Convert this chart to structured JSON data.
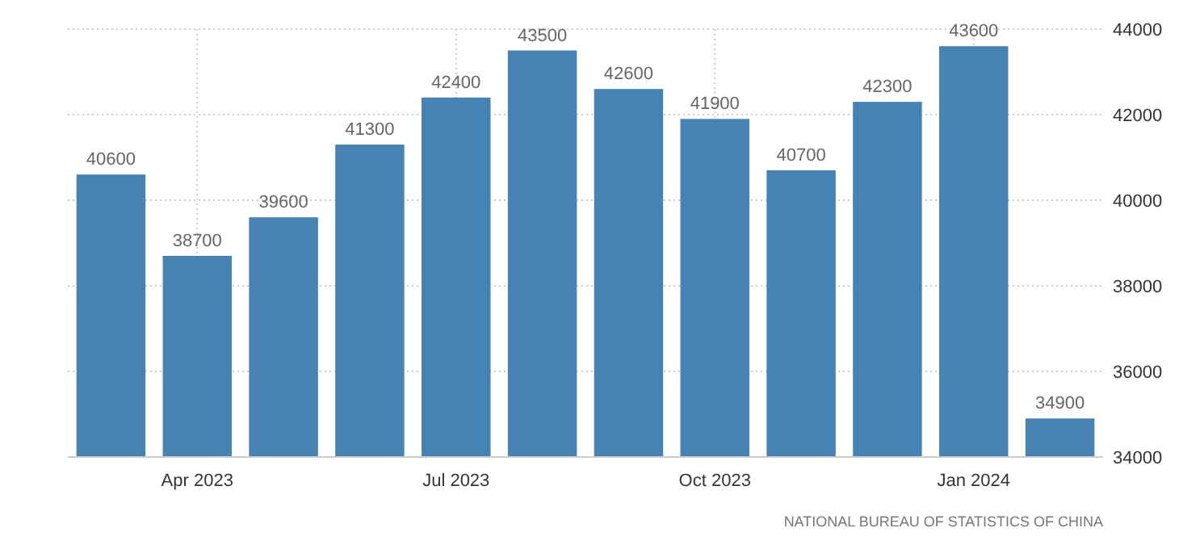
{
  "chart_data": {
    "type": "bar",
    "categories": [
      null,
      "Apr 2023",
      null,
      null,
      "Jul 2023",
      null,
      null,
      "Oct 2023",
      null,
      null,
      "Jan 2024",
      null
    ],
    "values": [
      40600,
      38700,
      39600,
      41300,
      42400,
      43500,
      42600,
      41900,
      40700,
      42300,
      43600,
      34900
    ],
    "color": "#4682b4",
    "ylim": [
      34000,
      44000
    ],
    "yticks": [
      34000,
      36000,
      38000,
      40000,
      42000,
      44000
    ],
    "grid": true,
    "data_labels": true,
    "annotations": [
      "NATIONAL BUREAU OF STATISTICS OF CHINA"
    ]
  }
}
